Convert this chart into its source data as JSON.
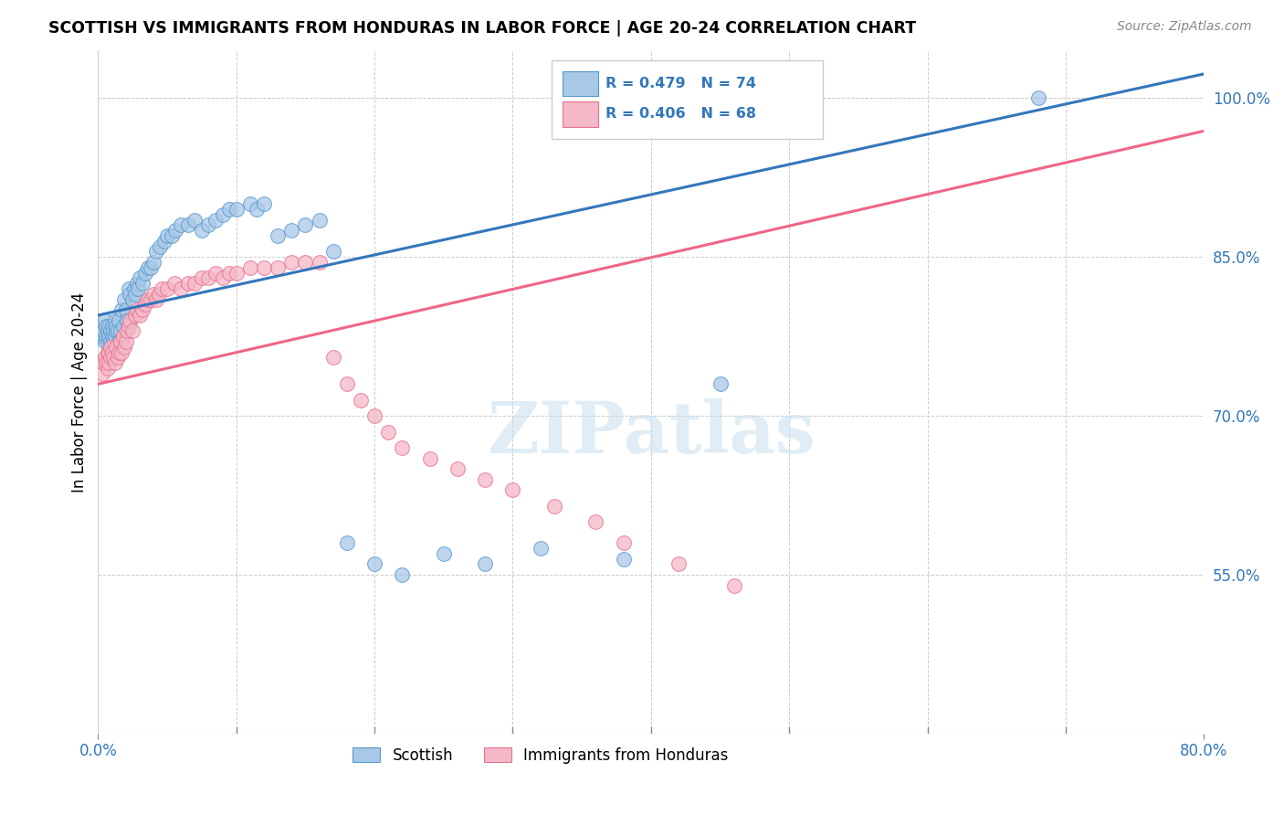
{
  "title": "SCOTTISH VS IMMIGRANTS FROM HONDURAS IN LABOR FORCE | AGE 20-24 CORRELATION CHART",
  "source": "Source: ZipAtlas.com",
  "ylabel": "In Labor Force | Age 20-24",
  "x_min": 0.0,
  "x_max": 0.8,
  "y_min": 0.4,
  "y_max": 1.045,
  "y_ticks": [
    0.55,
    0.7,
    0.85,
    1.0
  ],
  "y_tick_labels": [
    "55.0%",
    "70.0%",
    "85.0%",
    "100.0%"
  ],
  "blue_R": 0.479,
  "blue_N": 74,
  "pink_R": 0.406,
  "pink_N": 68,
  "blue_color": "#a8c8e8",
  "pink_color": "#f4b8c8",
  "blue_edge_color": "#5599cc",
  "pink_edge_color": "#e87090",
  "blue_line_color": "#3377bb",
  "pink_line_color": "#ee6688",
  "legend_label_blue": "Scottish",
  "legend_label_pink": "Immigrants from Honduras",
  "watermark": "ZIPatlas",
  "blue_scatter_x": [
    0.003,
    0.004,
    0.005,
    0.005,
    0.006,
    0.006,
    0.007,
    0.007,
    0.008,
    0.008,
    0.009,
    0.009,
    0.01,
    0.01,
    0.011,
    0.011,
    0.012,
    0.012,
    0.013,
    0.013,
    0.014,
    0.015,
    0.015,
    0.016,
    0.017,
    0.018,
    0.019,
    0.02,
    0.021,
    0.022,
    0.023,
    0.025,
    0.026,
    0.027,
    0.028,
    0.029,
    0.03,
    0.032,
    0.034,
    0.036,
    0.038,
    0.04,
    0.042,
    0.045,
    0.048,
    0.05,
    0.053,
    0.056,
    0.06,
    0.065,
    0.07,
    0.075,
    0.08,
    0.085,
    0.09,
    0.095,
    0.1,
    0.11,
    0.115,
    0.12,
    0.13,
    0.14,
    0.15,
    0.16,
    0.17,
    0.18,
    0.2,
    0.22,
    0.25,
    0.28,
    0.32,
    0.38,
    0.45,
    0.68
  ],
  "blue_scatter_y": [
    0.775,
    0.78,
    0.77,
    0.79,
    0.775,
    0.785,
    0.77,
    0.78,
    0.775,
    0.785,
    0.77,
    0.78,
    0.775,
    0.785,
    0.77,
    0.78,
    0.775,
    0.79,
    0.78,
    0.785,
    0.78,
    0.77,
    0.79,
    0.78,
    0.8,
    0.785,
    0.81,
    0.8,
    0.79,
    0.82,
    0.815,
    0.81,
    0.82,
    0.815,
    0.825,
    0.82,
    0.83,
    0.825,
    0.835,
    0.84,
    0.84,
    0.845,
    0.855,
    0.86,
    0.865,
    0.87,
    0.87,
    0.875,
    0.88,
    0.88,
    0.885,
    0.875,
    0.88,
    0.885,
    0.89,
    0.895,
    0.895,
    0.9,
    0.895,
    0.9,
    0.87,
    0.875,
    0.88,
    0.885,
    0.855,
    0.58,
    0.56,
    0.55,
    0.57,
    0.56,
    0.575,
    0.565,
    0.73,
    1.0
  ],
  "pink_scatter_x": [
    0.003,
    0.004,
    0.005,
    0.006,
    0.007,
    0.007,
    0.008,
    0.008,
    0.009,
    0.009,
    0.01,
    0.011,
    0.012,
    0.013,
    0.014,
    0.015,
    0.016,
    0.017,
    0.018,
    0.019,
    0.02,
    0.021,
    0.022,
    0.023,
    0.025,
    0.027,
    0.028,
    0.03,
    0.032,
    0.034,
    0.036,
    0.038,
    0.04,
    0.042,
    0.044,
    0.046,
    0.05,
    0.055,
    0.06,
    0.065,
    0.07,
    0.075,
    0.08,
    0.085,
    0.09,
    0.095,
    0.1,
    0.11,
    0.12,
    0.13,
    0.14,
    0.15,
    0.16,
    0.17,
    0.18,
    0.19,
    0.2,
    0.21,
    0.22,
    0.24,
    0.26,
    0.28,
    0.3,
    0.33,
    0.36,
    0.38,
    0.42,
    0.46
  ],
  "pink_scatter_y": [
    0.74,
    0.75,
    0.755,
    0.75,
    0.745,
    0.76,
    0.75,
    0.76,
    0.755,
    0.765,
    0.76,
    0.755,
    0.75,
    0.765,
    0.755,
    0.76,
    0.77,
    0.76,
    0.775,
    0.765,
    0.77,
    0.78,
    0.785,
    0.79,
    0.78,
    0.795,
    0.8,
    0.795,
    0.8,
    0.805,
    0.81,
    0.81,
    0.815,
    0.81,
    0.815,
    0.82,
    0.82,
    0.825,
    0.82,
    0.825,
    0.825,
    0.83,
    0.83,
    0.835,
    0.83,
    0.835,
    0.835,
    0.84,
    0.84,
    0.84,
    0.845,
    0.845,
    0.845,
    0.755,
    0.73,
    0.715,
    0.7,
    0.685,
    0.67,
    0.66,
    0.65,
    0.64,
    0.63,
    0.615,
    0.6,
    0.58,
    0.56,
    0.54
  ]
}
